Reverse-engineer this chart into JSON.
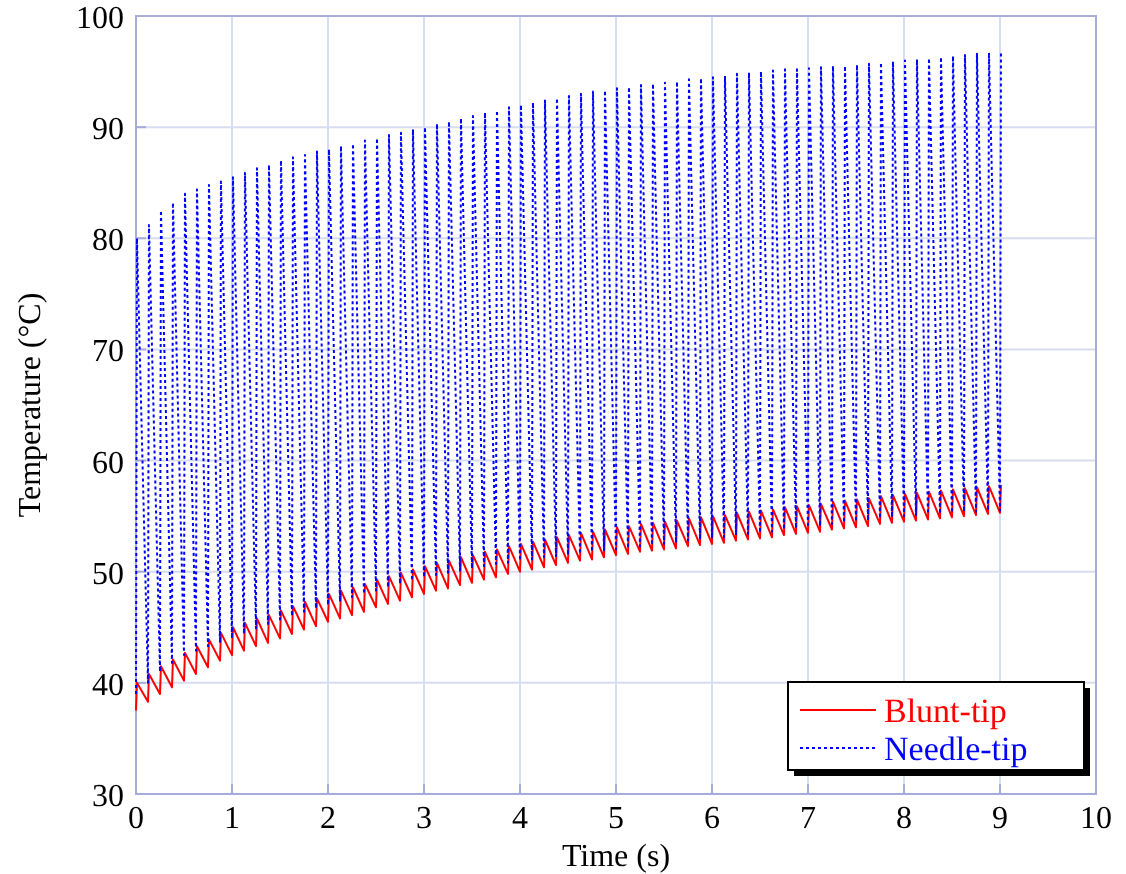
{
  "chart_data": {
    "type": "line",
    "xlabel": "Time (s)",
    "ylabel": "Temperature  (°C)",
    "xlim": [
      0,
      10
    ],
    "ylim": [
      30,
      100
    ],
    "xticks": [
      0,
      1,
      2,
      3,
      4,
      5,
      6,
      7,
      8,
      9,
      10
    ],
    "yticks": [
      30,
      40,
      50,
      60,
      70,
      80,
      90,
      100
    ],
    "grid": true,
    "legend": "bottom right",
    "marker": "none",
    "x": [
      0,
      0.01,
      0.125,
      0.135,
      0.25,
      0.26,
      0.375,
      0.385,
      0.5,
      0.51,
      0.625,
      0.635,
      0.75,
      0.76,
      0.875,
      0.885,
      1,
      1.01,
      1.125,
      1.135,
      1.25,
      1.26,
      1.375,
      1.385,
      1.5,
      1.51,
      1.625,
      1.635,
      1.75,
      1.76,
      1.875,
      1.885,
      2,
      2.01,
      2.125,
      2.135,
      2.25,
      2.26,
      2.375,
      2.385,
      2.5,
      2.51,
      2.625,
      2.635,
      2.75,
      2.76,
      2.875,
      2.885,
      3,
      3.01,
      3.125,
      3.135,
      3.25,
      3.26,
      3.375,
      3.385,
      3.5,
      3.51,
      3.625,
      3.635,
      3.75,
      3.76,
      3.875,
      3.885,
      4,
      4.01,
      4.125,
      4.135,
      4.25,
      4.26,
      4.375,
      4.385,
      4.5,
      4.51,
      4.625,
      4.635,
      4.75,
      4.76,
      4.875,
      4.885,
      5,
      5.01,
      5.125,
      5.135,
      5.25,
      5.26,
      5.375,
      5.385,
      5.5,
      5.51,
      5.625,
      5.635,
      5.75,
      5.76,
      5.875,
      5.885,
      6,
      6.01,
      6.125,
      6.135,
      6.25,
      6.26,
      6.375,
      6.385,
      6.5,
      6.51,
      6.625,
      6.635,
      6.75,
      6.76,
      6.875,
      6.885,
      7,
      7.01,
      7.125,
      7.135,
      7.25,
      7.26,
      7.375,
      7.385,
      7.5,
      7.51,
      7.625,
      7.635,
      7.75,
      7.76,
      7.875,
      7.885,
      8,
      8.01,
      8.125,
      8.135,
      8.25,
      8.26,
      8.375,
      8.385,
      8.5,
      8.51,
      8.625,
      8.635,
      8.75,
      8.76,
      8.875,
      8.885,
      9,
      9.01
    ],
    "series": [
      {
        "name": "Blunt-tip",
        "color": "#ff0000",
        "line_style": "solid",
        "values": [
          37.5,
          40,
          38.3,
          40.8,
          39,
          41.5,
          39.6,
          42.1,
          40.2,
          42.7,
          40.8,
          43.3,
          41.4,
          43.9,
          42,
          44.5,
          42.5,
          45,
          42.9,
          45.4,
          43.3,
          45.8,
          43.6,
          46.1,
          44,
          46.5,
          44.4,
          46.9,
          44.8,
          47.3,
          45.1,
          47.6,
          45.5,
          48,
          45.8,
          48.3,
          46.1,
          48.6,
          46.4,
          48.9,
          46.8,
          49.3,
          47.1,
          49.6,
          47.4,
          49.9,
          47.7,
          50.2,
          48,
          50.5,
          48.3,
          50.8,
          48.5,
          51,
          48.8,
          51.3,
          49,
          51.5,
          49.3,
          51.8,
          49.5,
          52,
          49.8,
          52.3,
          50,
          52.5,
          50.2,
          52.7,
          50.4,
          52.9,
          50.6,
          53.1,
          50.8,
          53.3,
          51,
          53.5,
          51.1,
          53.6,
          51.3,
          53.8,
          51.5,
          54,
          51.6,
          54.1,
          51.8,
          54.3,
          51.9,
          54.4,
          52,
          54.5,
          52.1,
          54.6,
          52.3,
          54.8,
          52.4,
          54.9,
          52.5,
          55,
          52.6,
          55.1,
          52.8,
          55.3,
          52.9,
          55.4,
          53,
          55.5,
          53.1,
          55.6,
          53.3,
          55.8,
          53.4,
          55.9,
          53.5,
          56,
          53.6,
          56.1,
          53.8,
          56.3,
          53.9,
          56.4,
          54,
          56.5,
          54.1,
          56.6,
          54.3,
          56.8,
          54.4,
          56.9,
          54.5,
          57,
          54.6,
          57.1,
          54.7,
          57.2,
          54.8,
          57.3,
          54.9,
          57.4,
          55,
          57.5,
          55.1,
          57.6,
          55.2,
          57.7,
          55.3,
          57.8
        ]
      },
      {
        "name": "Needle-tip",
        "color": "#0000ff",
        "line_style": "dotted",
        "values": [
          39,
          80,
          40,
          81.2,
          41,
          82.5,
          41.8,
          83.2,
          42.5,
          84,
          42.9,
          84.4,
          43.3,
          84.8,
          43.6,
          85.1,
          44,
          85.5,
          44.4,
          85.9,
          44.9,
          86.3,
          45.3,
          86.6,
          45.7,
          87,
          46,
          87.3,
          46.4,
          87.5,
          46.7,
          87.8,
          47,
          88,
          47.3,
          88.3,
          47.7,
          88.5,
          48,
          88.8,
          48.3,
          89,
          48.6,
          89.3,
          48.9,
          89.5,
          49.2,
          89.8,
          49.5,
          90,
          49.7,
          90.3,
          49.9,
          90.5,
          50.1,
          90.8,
          50.3,
          91,
          50.5,
          91.3,
          50.7,
          91.5,
          50.8,
          91.8,
          51,
          92,
          51.1,
          92.2,
          51.3,
          92.4,
          51.4,
          92.6,
          51.5,
          92.8,
          51.6,
          93,
          51.8,
          93.2,
          51.9,
          93.3,
          52,
          93.5,
          52.1,
          93.6,
          52.3,
          93.8,
          52.4,
          93.9,
          52.5,
          94,
          52.6,
          94.1,
          52.8,
          94.3,
          52.9,
          94.4,
          53,
          94.5,
          53.1,
          94.6,
          53.3,
          94.8,
          53.4,
          94.9,
          53.5,
          95,
          53.6,
          95.1,
          53.8,
          95.2,
          53.9,
          95.2,
          54,
          95.3,
          54.1,
          95.4,
          54.3,
          95.5,
          54.4,
          95.5,
          54.5,
          95.6,
          54.6,
          95.7,
          54.8,
          95.8,
          54.9,
          95.9,
          55,
          96,
          55.1,
          96.1,
          55.2,
          96.2,
          55.2,
          96.3,
          55.3,
          96.4,
          55.4,
          96.5,
          55.4,
          96.6,
          55.5,
          96.7,
          55.5,
          96.8
        ]
      }
    ]
  }
}
